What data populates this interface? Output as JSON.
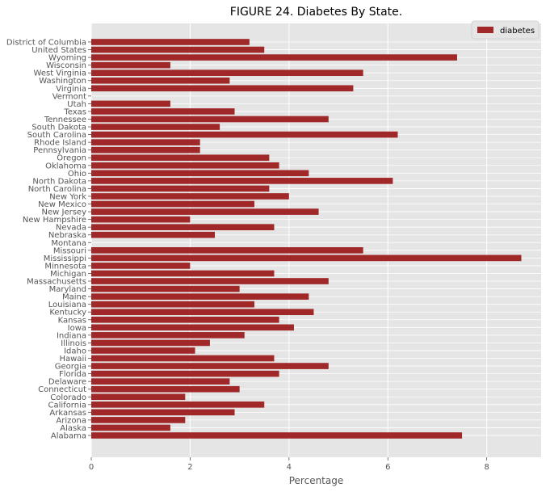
{
  "chart_data": {
    "type": "bar",
    "orientation": "horizontal",
    "title": "FIGURE 24. Diabetes By State.",
    "xlabel": "Percentage",
    "ylabel": "",
    "xlim": [
      0,
      9.1
    ],
    "xticks": [
      0,
      2,
      4,
      6,
      8
    ],
    "grid": true,
    "legend_position": "top-right",
    "categories": [
      "Alabama",
      "Alaska",
      "Arizona",
      "Arkansas",
      "California",
      "Colorado",
      "Connecticut",
      "Delaware",
      "Florida",
      "Georgia",
      "Hawaii",
      "Idaho",
      "Illinois",
      "Indiana",
      "Iowa",
      "Kansas",
      "Kentucky",
      "Louisiana",
      "Maine",
      "Maryland",
      "Massachusetts",
      "Michigan",
      "Minnesota",
      "Mississippi",
      "Missouri",
      "Montana",
      "Nebraska",
      "Nevada",
      "New Hampshire",
      "New Jersey",
      "New Mexico",
      "New York",
      "North Carolina",
      "North Dakota",
      "Ohio",
      "Oklahoma",
      "Oregon",
      "Pennsylvania",
      "Rhode Island",
      "South Carolina",
      "South Dakota",
      "Tennessee",
      "Texas",
      "Utah",
      "Vermont",
      "Virginia",
      "Washington",
      "West Virginia",
      "Wisconsin",
      "Wyoming",
      "United States",
      "District of Columbia"
    ],
    "series": [
      {
        "name": "diabetes",
        "color": "#a02828",
        "values": [
          7.5,
          1.6,
          1.9,
          2.9,
          3.5,
          1.9,
          3.0,
          2.8,
          3.8,
          4.8,
          3.7,
          2.1,
          2.4,
          3.1,
          4.1,
          3.8,
          4.5,
          3.3,
          4.4,
          3.0,
          4.8,
          3.7,
          2.0,
          8.7,
          5.5,
          0,
          2.5,
          3.7,
          2.0,
          4.6,
          3.3,
          4.0,
          3.6,
          6.1,
          4.4,
          3.8,
          3.6,
          2.2,
          2.2,
          6.2,
          2.6,
          4.8,
          2.9,
          1.6,
          0,
          5.3,
          2.8,
          5.5,
          1.6,
          7.4,
          3.5,
          3.2
        ]
      }
    ]
  },
  "colors": {
    "plot_background": "#e5e5e5",
    "grid": "#ffffff",
    "bar": "#a02828"
  }
}
